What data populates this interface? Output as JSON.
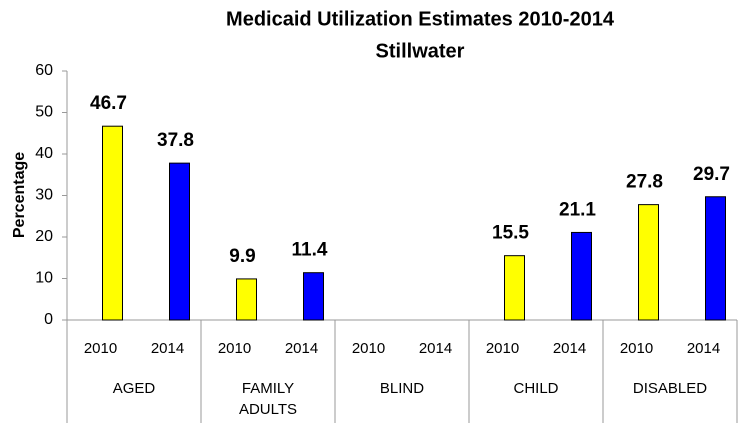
{
  "chart_data": {
    "type": "bar",
    "title": "Medicaid Utilization Estimates 2010-2014",
    "subtitle": "Stillwater",
    "y_label": "Percentage",
    "categories": [
      "AGED",
      "FAMILY ADULTS",
      "BLIND",
      "CHILD",
      "DISABLED"
    ],
    "series": [
      {
        "name": "2010",
        "color": "#ffff00",
        "values": [
          46.7,
          9.9,
          null,
          15.5,
          27.8
        ]
      },
      {
        "name": "2014",
        "color": "#0000ff",
        "values": [
          37.8,
          11.4,
          null,
          21.1,
          29.7
        ]
      }
    ],
    "ylim": [
      0,
      60
    ],
    "yticks": [
      0,
      10,
      20,
      30,
      40,
      50,
      60
    ],
    "grid": false
  }
}
